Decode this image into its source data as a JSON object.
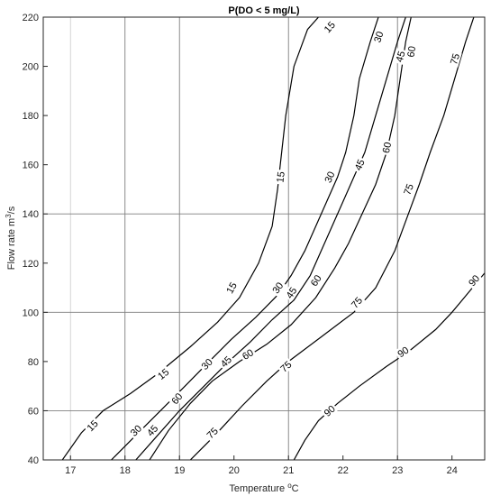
{
  "chart_data": {
    "type": "contour",
    "title": "P(DO < 5 mg/L)",
    "xlabel": "Temperature",
    "xlabel_unit_sup": "o",
    "xlabel_unit": "C",
    "ylabel": "Flow rate m",
    "ylabel_sup": "3",
    "ylabel_unit": "/s",
    "xlim": [
      16.5,
      24.6
    ],
    "ylim": [
      40,
      220
    ],
    "xticks": [
      17,
      18,
      19,
      20,
      21,
      22,
      23,
      24
    ],
    "yticks": [
      40,
      60,
      80,
      100,
      120,
      140,
      160,
      180,
      200,
      220
    ],
    "grid_x_dark": [
      18,
      19,
      21,
      23
    ],
    "grid_x_light": [
      17
    ],
    "grid_y_dark": [
      60,
      100,
      140
    ],
    "levels": [
      {
        "level": 15,
        "points": [
          [
            16.85,
            40
          ],
          [
            17.2,
            51
          ],
          [
            17.6,
            60
          ],
          [
            18.1,
            67
          ],
          [
            18.6,
            75
          ],
          [
            19.2,
            86
          ],
          [
            19.7,
            96
          ],
          [
            20.1,
            106
          ],
          [
            20.45,
            120
          ],
          [
            20.7,
            135
          ],
          [
            20.8,
            150
          ],
          [
            20.85,
            160
          ],
          [
            20.95,
            180
          ],
          [
            21.1,
            200
          ],
          [
            21.35,
            215
          ],
          [
            21.55,
            220
          ]
        ],
        "labels": [
          [
            17.4,
            54
          ],
          [
            18.7,
            75
          ],
          [
            19.95,
            110
          ],
          [
            20.85,
            155
          ],
          [
            21.75,
            216
          ]
        ]
      },
      {
        "level": 30,
        "points": [
          [
            17.75,
            40
          ],
          [
            18.2,
            50
          ],
          [
            18.65,
            60
          ],
          [
            19.1,
            70
          ],
          [
            19.5,
            79
          ],
          [
            19.95,
            89
          ],
          [
            20.4,
            98
          ],
          [
            20.8,
            107
          ],
          [
            21.05,
            115
          ],
          [
            21.3,
            125
          ],
          [
            21.5,
            135
          ],
          [
            21.7,
            145
          ],
          [
            21.9,
            155
          ],
          [
            22.05,
            165
          ],
          [
            22.2,
            180
          ],
          [
            22.3,
            195
          ],
          [
            22.5,
            210
          ],
          [
            22.65,
            220
          ]
        ],
        "labels": [
          [
            18.2,
            52
          ],
          [
            19.5,
            79
          ],
          [
            20.8,
            110
          ],
          [
            21.75,
            155
          ],
          [
            22.65,
            212
          ]
        ]
      },
      {
        "level": 45,
        "points": [
          [
            18.2,
            40
          ],
          [
            18.6,
            50
          ],
          [
            19.0,
            60
          ],
          [
            19.45,
            70
          ],
          [
            19.9,
            80
          ],
          [
            20.3,
            88
          ],
          [
            20.7,
            97
          ],
          [
            21.1,
            105
          ],
          [
            21.4,
            115
          ],
          [
            21.6,
            125
          ],
          [
            21.8,
            135
          ],
          [
            22.0,
            145
          ],
          [
            22.2,
            155
          ],
          [
            22.4,
            165
          ],
          [
            22.6,
            180
          ],
          [
            22.8,
            195
          ],
          [
            23.0,
            210
          ],
          [
            23.15,
            220
          ]
        ],
        "labels": [
          [
            18.5,
            52
          ],
          [
            19.85,
            80
          ],
          [
            21.05,
            108
          ],
          [
            22.3,
            160
          ],
          [
            23.05,
            204
          ]
        ]
      },
      {
        "level": 60,
        "points": [
          [
            18.45,
            40
          ],
          [
            18.8,
            52
          ],
          [
            19.2,
            63
          ],
          [
            19.6,
            72
          ],
          [
            20.1,
            80
          ],
          [
            20.6,
            87
          ],
          [
            21.05,
            95
          ],
          [
            21.5,
            106
          ],
          [
            21.85,
            118
          ],
          [
            22.1,
            128
          ],
          [
            22.35,
            140
          ],
          [
            22.6,
            152
          ],
          [
            22.8,
            165
          ],
          [
            22.95,
            180
          ],
          [
            23.05,
            195
          ],
          [
            23.15,
            210
          ],
          [
            23.25,
            220
          ]
        ],
        "labels": [
          [
            18.95,
            65
          ],
          [
            20.25,
            83
          ],
          [
            21.5,
            113
          ],
          [
            22.8,
            167
          ],
          [
            23.25,
            206
          ]
        ]
      },
      {
        "level": 75,
        "points": [
          [
            19.2,
            40
          ],
          [
            19.65,
            50
          ],
          [
            20.15,
            62
          ],
          [
            20.6,
            72
          ],
          [
            21.0,
            80
          ],
          [
            21.6,
            90
          ],
          [
            22.2,
            100
          ],
          [
            22.6,
            110
          ],
          [
            22.95,
            125
          ],
          [
            23.2,
            140
          ],
          [
            23.4,
            152
          ],
          [
            23.6,
            165
          ],
          [
            23.85,
            180
          ],
          [
            24.05,
            195
          ],
          [
            24.25,
            210
          ],
          [
            24.4,
            220
          ]
        ],
        "labels": [
          [
            19.6,
            51
          ],
          [
            20.95,
            78
          ],
          [
            22.25,
            104
          ],
          [
            23.2,
            150
          ],
          [
            24.05,
            203
          ]
        ]
      },
      {
        "level": 90,
        "points": [
          [
            21.1,
            40
          ],
          [
            21.3,
            48
          ],
          [
            21.55,
            56
          ],
          [
            21.9,
            63
          ],
          [
            22.3,
            70
          ],
          [
            22.8,
            78
          ],
          [
            23.2,
            84
          ],
          [
            23.7,
            93
          ],
          [
            24.0,
            100
          ],
          [
            24.3,
            108
          ],
          [
            24.6,
            116
          ]
        ],
        "labels": [
          [
            21.75,
            60
          ],
          [
            23.1,
            84
          ],
          [
            24.4,
            113
          ]
        ]
      }
    ]
  }
}
